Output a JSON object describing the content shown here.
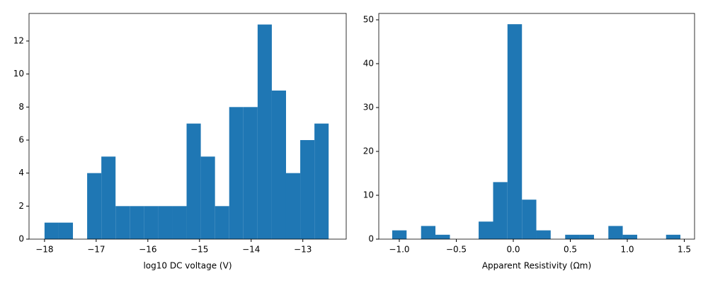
{
  "chart_data": [
    {
      "type": "histogram",
      "xlabel": "log10 DC voltage (V)",
      "color": "#1f77b4",
      "bins": [
        -18,
        -17.725,
        -17.45,
        -17.175,
        -16.9,
        -16.625,
        -16.35,
        -16.075,
        -15.8,
        -15.525,
        -15.25,
        -14.975,
        -14.7,
        -14.425,
        -14.15,
        -13.875,
        -13.6,
        -13.325,
        -13.05,
        -12.775,
        -12.5
      ],
      "values": [
        1,
        1,
        0,
        4,
        5,
        2,
        2,
        2,
        2,
        2,
        7,
        5,
        2,
        8,
        8,
        13,
        9,
        4,
        6,
        7
      ],
      "xlim": [
        -18.3,
        -12.16
      ],
      "ylim": [
        0,
        13.67
      ],
      "xticks": [
        {
          "value": -18,
          "label": "−18"
        },
        {
          "value": -17,
          "label": "−17"
        },
        {
          "value": -16,
          "label": "−16"
        },
        {
          "value": -15,
          "label": "−15"
        },
        {
          "value": -14,
          "label": "−14"
        },
        {
          "value": -13,
          "label": "−13"
        }
      ],
      "yticks": [
        0,
        2,
        4,
        6,
        8,
        10,
        12
      ]
    },
    {
      "type": "histogram",
      "xlabel": "Apparent Resistivity (Ωm)",
      "color": "#1f77b4",
      "bins": [
        -1.062,
        -0.936,
        -0.809,
        -0.683,
        -0.556,
        -0.43,
        -0.304,
        -0.177,
        -0.051,
        0.076,
        0.202,
        0.328,
        0.455,
        0.581,
        0.708,
        0.834,
        0.96,
        1.087,
        1.213,
        1.34,
        1.466
      ],
      "values": [
        2,
        0,
        3,
        1,
        0,
        0,
        4,
        13,
        49,
        9,
        2,
        0,
        1,
        1,
        0,
        3,
        1,
        0,
        0,
        1
      ],
      "xlim": [
        -1.18,
        1.59
      ],
      "ylim": [
        0,
        51.45
      ],
      "xticks": [
        {
          "value": -1,
          "label": "−1.0"
        },
        {
          "value": -0.5,
          "label": "−0.5"
        },
        {
          "value": 0,
          "label": "0.0"
        },
        {
          "value": 0.5,
          "label": "0.5"
        },
        {
          "value": 1,
          "label": "1.0"
        },
        {
          "value": 1.5,
          "label": "1.5"
        }
      ],
      "yticks": [
        0,
        10,
        20,
        30,
        40,
        50
      ]
    }
  ]
}
